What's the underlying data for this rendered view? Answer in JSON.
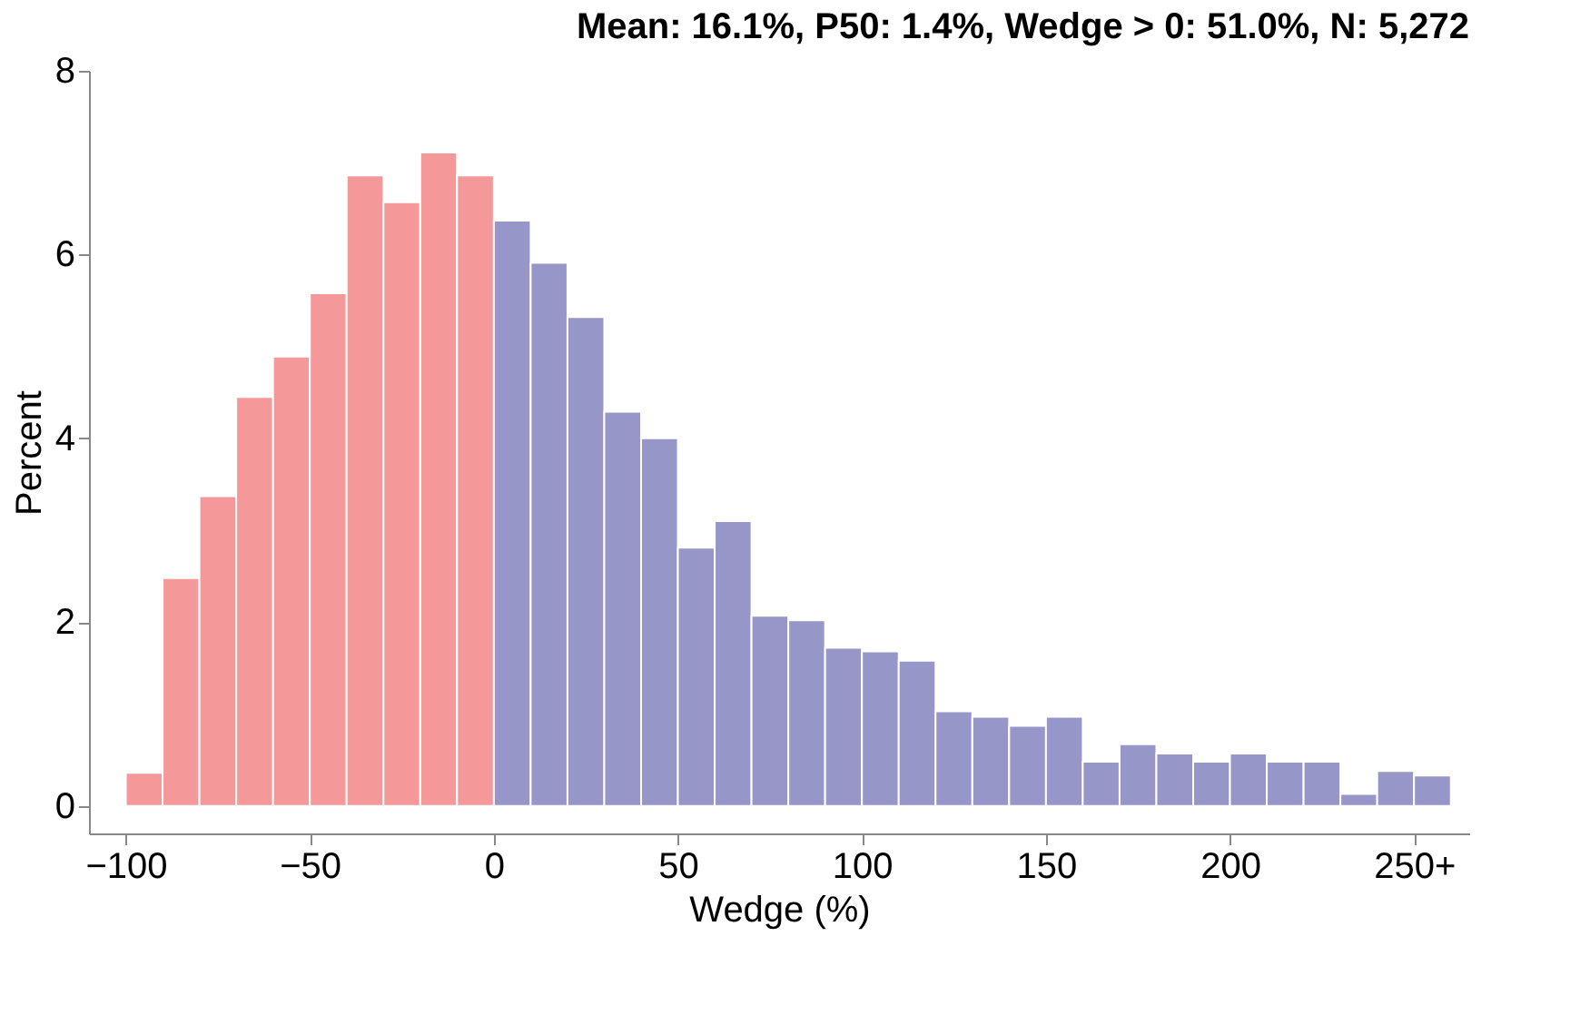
{
  "chart_data": {
    "type": "histogram",
    "title": "Mean: 16.1%, P50: 1.4%, Wedge > 0: 51.0%, N: 5,272",
    "xlabel": "Wedge (%)",
    "ylabel": "Percent",
    "bins": [
      -100,
      -90,
      -80,
      -70,
      -60,
      -50,
      -40,
      -30,
      -20,
      -10,
      0,
      10,
      20,
      30,
      40,
      50,
      60,
      70,
      80,
      90,
      100,
      110,
      120,
      130,
      140,
      150,
      160,
      170,
      180,
      190,
      200,
      210,
      220,
      230,
      240,
      250,
      260
    ],
    "values": [
      0.36,
      2.48,
      3.37,
      4.45,
      4.89,
      5.58,
      6.86,
      6.57,
      7.11,
      6.86,
      6.37,
      5.91,
      5.32,
      4.29,
      4.0,
      2.81,
      3.1,
      2.07,
      2.02,
      1.72,
      1.68,
      1.58,
      1.03,
      0.97,
      0.87,
      0.97,
      0.48,
      0.67,
      0.57,
      0.48,
      0.57,
      0.48,
      0.48,
      0.13,
      0.38,
      0.33
    ],
    "colors": [
      "#f4989a",
      "#f4989a",
      "#f4989a",
      "#f4989a",
      "#f4989a",
      "#f4989a",
      "#f4989a",
      "#f4989a",
      "#f4989a",
      "#f4989a",
      "#9696c8",
      "#9696c8",
      "#9696c8",
      "#9696c8",
      "#9696c8",
      "#9696c8",
      "#9696c8",
      "#9696c8",
      "#9696c8",
      "#9696c8",
      "#9696c8",
      "#9696c8",
      "#9696c8",
      "#9696c8",
      "#9696c8",
      "#9696c8",
      "#9696c8",
      "#9696c8",
      "#9696c8",
      "#9696c8",
      "#9696c8",
      "#9696c8",
      "#9696c8",
      "#9696c8",
      "#9696c8",
      "#9696c8"
    ],
    "xlim": [
      -110,
      265
    ],
    "ylim": [
      -0.3,
      8
    ],
    "xticks": [
      -100,
      -50,
      0,
      50,
      100,
      150,
      200,
      {
        "value": 250,
        "label": "250+"
      }
    ],
    "yticks": [
      0,
      2,
      4,
      6,
      8
    ],
    "grid": false
  }
}
